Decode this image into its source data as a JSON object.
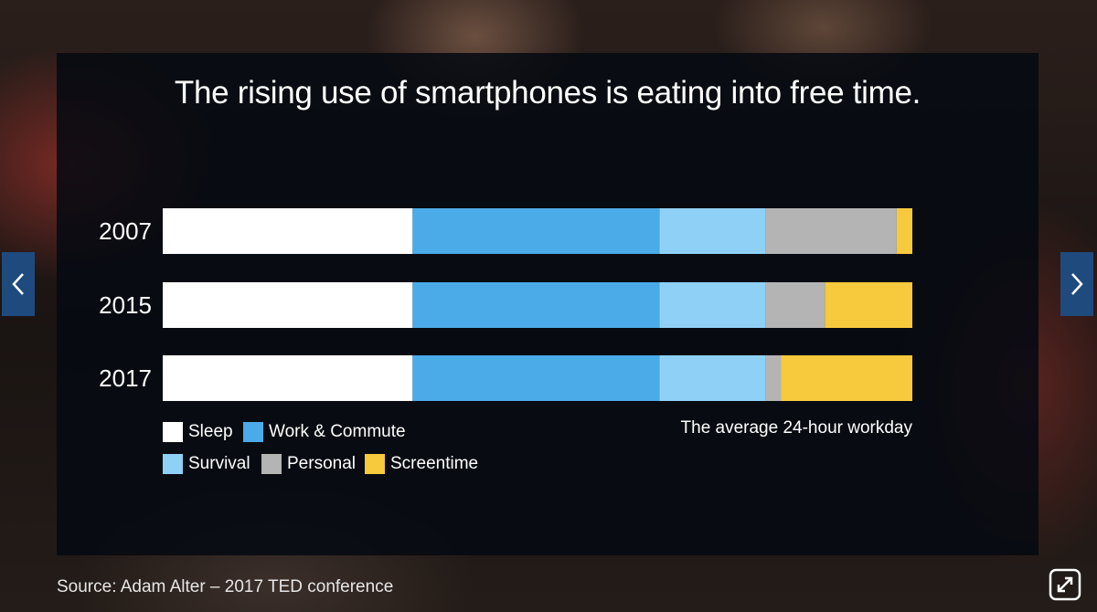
{
  "title": "The rising use of smartphones is eating into free time.",
  "source": "Source: Adam Alter – 2017 TED conference",
  "caption": "The average 24-hour workday",
  "icons": {
    "prev": "chevron-left-icon",
    "next": "chevron-right-icon",
    "expand": "expand-icon"
  },
  "colors": {
    "Sleep": "#ffffff",
    "Work & Commute": "#4aabe8",
    "Survival": "#8fd1f6",
    "Personal": "#b4b4b4",
    "Screentime": "#f7c93c"
  },
  "chart_data": {
    "type": "bar",
    "orientation": "horizontal",
    "stacked": true,
    "title": "The rising use of smartphones is eating into free time.",
    "xlabel": "The average 24-hour workday",
    "xlim": [
      0,
      24
    ],
    "categories": [
      "2007",
      "2015",
      "2017"
    ],
    "series": [
      {
        "name": "Sleep",
        "values": [
          8,
          8,
          8
        ]
      },
      {
        "name": "Work & Commute",
        "values": [
          7.9,
          7.9,
          7.9
        ]
      },
      {
        "name": "Survival",
        "values": [
          3.4,
          3.4,
          3.4
        ]
      },
      {
        "name": "Personal",
        "values": [
          4.2,
          1.9,
          0.5
        ]
      },
      {
        "name": "Screentime",
        "values": [
          0.5,
          2.8,
          4.2
        ]
      }
    ],
    "legend": [
      "Sleep",
      "Work & Commute",
      "Survival",
      "Personal",
      "Screentime"
    ]
  }
}
